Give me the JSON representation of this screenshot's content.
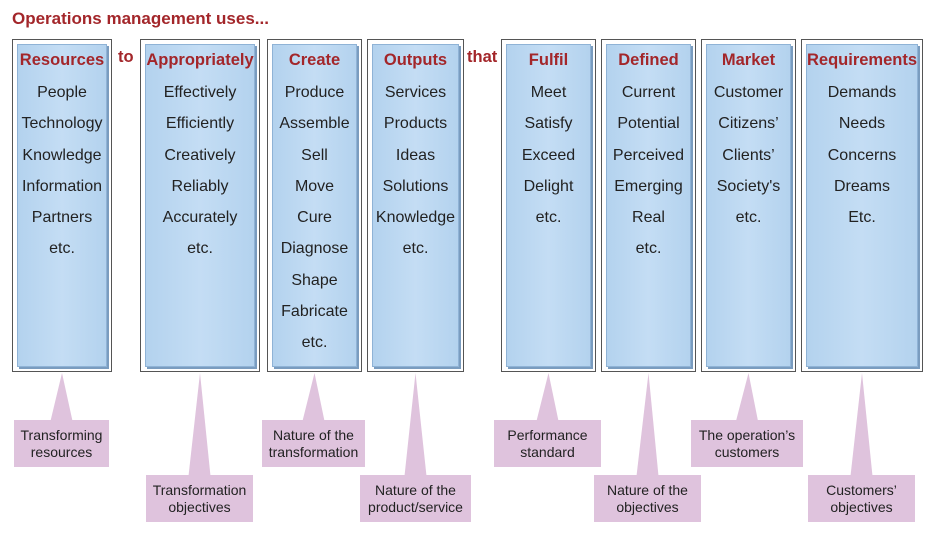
{
  "title": "Operations management  uses...",
  "connectors": [
    "to",
    "that"
  ],
  "columns": [
    {
      "header": "Resources",
      "items": [
        "People",
        "Technology",
        "Knowledge",
        "Information",
        "Partners",
        "etc."
      ]
    },
    {
      "header": "Appropriately",
      "items": [
        "Effectively",
        "Efficiently",
        "Creatively",
        "Reliably",
        "Accurately",
        "etc."
      ]
    },
    {
      "header": "Create",
      "items": [
        "Produce",
        "Assemble",
        "Sell",
        "Move",
        "Cure",
        "Diagnose",
        "Shape",
        "Fabricate",
        "etc."
      ]
    },
    {
      "header": "Outputs",
      "items": [
        "Services",
        "Products",
        "Ideas",
        "Solutions",
        "Knowledge",
        "etc."
      ]
    },
    {
      "header": "Fulfil",
      "items": [
        "Meet",
        "Satisfy",
        "Exceed",
        "Delight",
        "etc."
      ]
    },
    {
      "header": "Defined",
      "items": [
        "Current",
        "Potential",
        "Perceived",
        "Emerging",
        "Real",
        "etc."
      ]
    },
    {
      "header": "Market",
      "items": [
        "Customer",
        "Citizens’",
        "Clients’",
        "Society's",
        "etc."
      ]
    },
    {
      "header": "Requirements",
      "items": [
        "Demands",
        "Needs",
        "Concerns",
        "Dreams",
        "Etc."
      ]
    }
  ],
  "callouts": [
    "Transforming resources",
    "Transformation objectives",
    "Nature of the transformation",
    "Nature of the product/service",
    "Performance standard",
    "Nature of the objectives",
    "The operation’s customers",
    "Customers’ objectives"
  ],
  "colors": {
    "accent": "#a3262a",
    "column": "#b9d6f0",
    "callout": "#dfc3dd"
  }
}
